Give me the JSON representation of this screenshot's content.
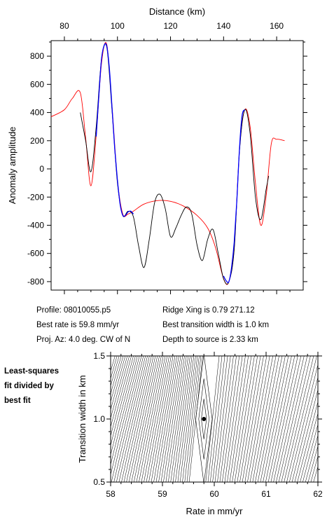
{
  "chart_data": [
    {
      "type": "line",
      "title": "",
      "xlabel": "Distance (km)",
      "ylabel": "Anomaly amplitude",
      "xlim": [
        75,
        170
      ],
      "ylim": [
        -860,
        910
      ],
      "x_ticks": [
        80,
        100,
        120,
        140,
        160
      ],
      "y_ticks": [
        -800,
        -600,
        -400,
        -200,
        0,
        200,
        400,
        600,
        800
      ],
      "x_axis_position": "top",
      "grid": false,
      "legend": "none",
      "series": [
        {
          "color": "#ff0000",
          "x": [
            75,
            80,
            83,
            86,
            88,
            90,
            92,
            94,
            96,
            98,
            100,
            102,
            104,
            106,
            110,
            115,
            120,
            125,
            130,
            134,
            137,
            140,
            142,
            144,
            146,
            148,
            150,
            152,
            154,
            156,
            158,
            160,
            163
          ],
          "y": [
            370,
            420,
            500,
            540,
            220,
            -120,
            240,
            750,
            880,
            430,
            -80,
            -320,
            -320,
            -300,
            -250,
            -225,
            -230,
            -265,
            -330,
            -420,
            -560,
            -780,
            -800,
            -560,
            140,
            420,
            300,
            -100,
            -400,
            -200,
            180,
            210,
            200
          ]
        },
        {
          "color": "#000000",
          "x": [
            86,
            88,
            90,
            92,
            94,
            96,
            98,
            100,
            102,
            104,
            106,
            108,
            110,
            112,
            114,
            116,
            118,
            120,
            122,
            124,
            126,
            128,
            130,
            132,
            134,
            136,
            138,
            140,
            142,
            144,
            146,
            148,
            150,
            152,
            154,
            156,
            157
          ],
          "y": [
            400,
            200,
            -20,
            300,
            780,
            860,
            400,
            -100,
            -330,
            -300,
            -340,
            -550,
            -700,
            -500,
            -240,
            -180,
            -280,
            -480,
            -420,
            -330,
            -270,
            -320,
            -540,
            -650,
            -500,
            -430,
            -600,
            -780,
            -800,
            -570,
            130,
            420,
            250,
            -200,
            -360,
            -150,
            -50
          ]
        },
        {
          "color": "#0000ff",
          "x": [
            92,
            93,
            94,
            95,
            96,
            97,
            98,
            99,
            100,
            101,
            102,
            103,
            104,
            105,
            106
          ],
          "y": [
            230,
            520,
            780,
            875,
            870,
            700,
            420,
            140,
            -80,
            -250,
            -330,
            -330,
            -305,
            -300,
            -320
          ]
        },
        {
          "color": "#0000ff",
          "x": [
            140,
            141,
            142,
            143,
            144,
            145,
            146,
            147,
            148
          ],
          "y": [
            -760,
            -795,
            -800,
            -700,
            -520,
            -220,
            150,
            380,
            420
          ]
        }
      ]
    },
    {
      "type": "contour",
      "title": "",
      "xlabel": "Rate in mm/yr",
      "ylabel": "Transition width in km",
      "xlim": [
        58,
        62
      ],
      "ylim": [
        0.5,
        1.5
      ],
      "x_ticks": [
        58,
        59,
        60,
        61,
        62
      ],
      "y_ticks": [
        0.5,
        1.0,
        1.5
      ],
      "grid": false,
      "best_fit_point": {
        "x": 59.8,
        "y": 1.0
      }
    }
  ],
  "info": {
    "profile": "Profile: 08010055.p5",
    "best_rate": "Best rate is 59.8 mm/yr",
    "proj_az": "Proj. Az: 4.0 deg. CW of N",
    "ridge_xing": "Ridge Xing is 0.79 271.12",
    "best_transition": "Best transition width is 1.0 km",
    "depth": "Depth to source is   2.33 km"
  },
  "side_label": [
    "Least-squares",
    "fit divided by",
    "best fit"
  ]
}
